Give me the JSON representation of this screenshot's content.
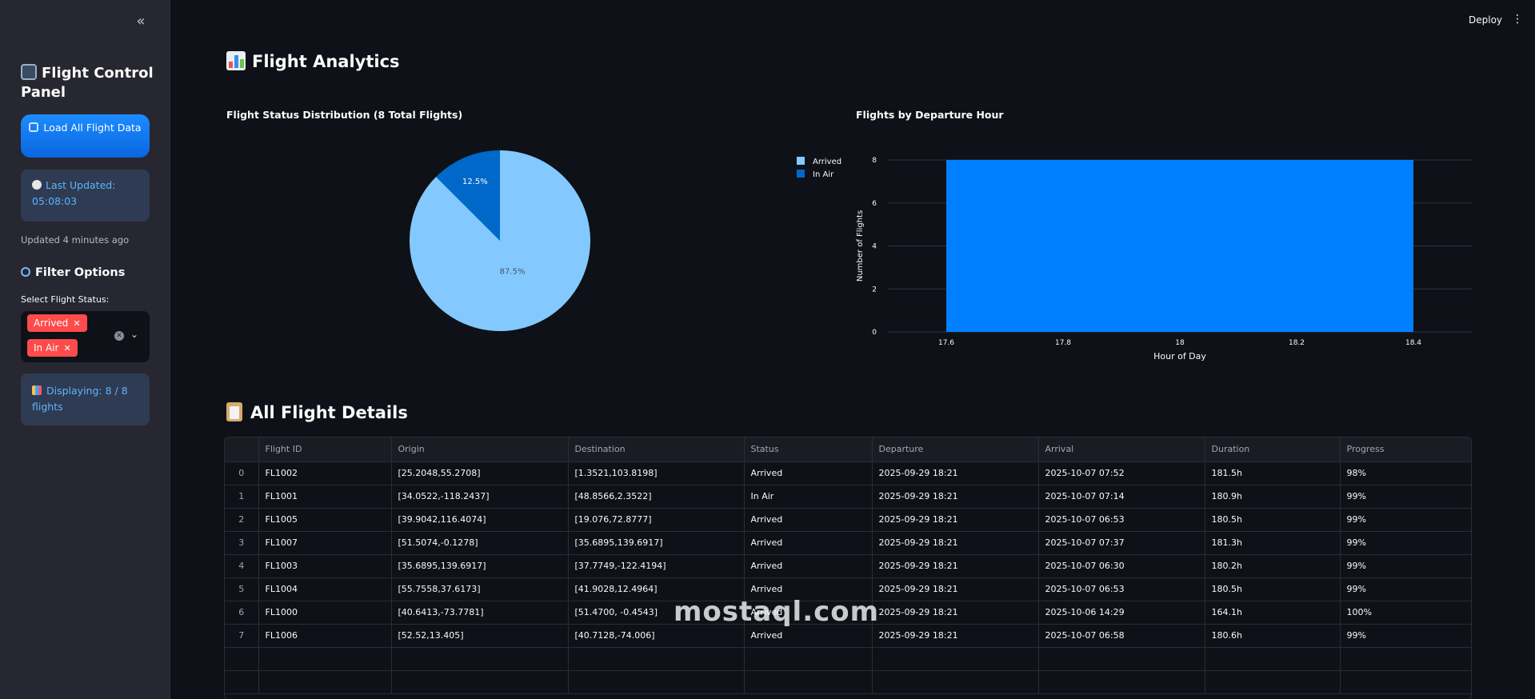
{
  "sidebar": {
    "collapse_icon": "«",
    "title": "Flight Control Panel",
    "load_button": "Load All Flight Data",
    "last_updated": "Last Updated: 05:08:03",
    "updated_ago": "Updated 4 minutes ago",
    "filter_title": "Filter Options",
    "filter_label": "Select Flight Status:",
    "selected_statuses": [
      "Arrived",
      "In Air"
    ],
    "displaying": "Displaying: 8 / 8 flights"
  },
  "header": {
    "deploy": "Deploy",
    "more_icon": "⋮"
  },
  "main": {
    "title": "Flight Analytics",
    "table_title": "All Flight Details"
  },
  "colors": {
    "arrived": "#83c9ff",
    "in_air": "#0068c9",
    "bar": "#0080ff",
    "accent": "#ff4b4b"
  },
  "chart_data": [
    {
      "type": "pie",
      "title": "Flight Status Distribution (8 Total Flights)",
      "slices": [
        {
          "label": "Arrived",
          "value": 87.5,
          "display": "87.5%"
        },
        {
          "label": "In Air",
          "value": 12.5,
          "display": "12.5%"
        }
      ],
      "legend": "right"
    },
    {
      "type": "bar",
      "title": "Flights by Departure Hour",
      "xlabel": "Hour of Day",
      "ylabel": "Number of Flights",
      "x": [
        18
      ],
      "bar_range": [
        17.6,
        18.4
      ],
      "values": [
        8
      ],
      "xlim": [
        17.5,
        18.5
      ],
      "ylim": [
        0,
        8
      ],
      "xticks": [
        "17.6",
        "17.8",
        "18",
        "18.2",
        "18.4"
      ],
      "yticks": [
        "0",
        "2",
        "4",
        "6",
        "8"
      ],
      "grid": true
    }
  ],
  "table": {
    "columns": [
      "",
      "Flight ID",
      "Origin",
      "Destination",
      "Status",
      "Departure",
      "Arrival",
      "Duration",
      "Progress"
    ],
    "rows": [
      [
        "0",
        "FL1002",
        "[25.2048,55.2708]",
        "[1.3521,103.8198]",
        "Arrived",
        "2025-09-29 18:21",
        "2025-10-07 07:52",
        "181.5h",
        "98%"
      ],
      [
        "1",
        "FL1001",
        "[34.0522,-118.2437]",
        "[48.8566,2.3522]",
        "In Air",
        "2025-09-29 18:21",
        "2025-10-07 07:14",
        "180.9h",
        "99%"
      ],
      [
        "2",
        "FL1005",
        "[39.9042,116.4074]",
        "[19.076,72.8777]",
        "Arrived",
        "2025-09-29 18:21",
        "2025-10-07 06:53",
        "180.5h",
        "99%"
      ],
      [
        "3",
        "FL1007",
        "[51.5074,-0.1278]",
        "[35.6895,139.6917]",
        "Arrived",
        "2025-09-29 18:21",
        "2025-10-07 07:37",
        "181.3h",
        "99%"
      ],
      [
        "4",
        "FL1003",
        "[35.6895,139.6917]",
        "[37.7749,-122.4194]",
        "Arrived",
        "2025-09-29 18:21",
        "2025-10-07 06:30",
        "180.2h",
        "99%"
      ],
      [
        "5",
        "FL1004",
        "[55.7558,37.6173]",
        "[41.9028,12.4964]",
        "Arrived",
        "2025-09-29 18:21",
        "2025-10-07 06:53",
        "180.5h",
        "99%"
      ],
      [
        "6",
        "FL1000",
        "[40.6413,-73.7781]",
        "[51.4700, -0.4543]",
        "Arrived",
        "2025-09-29 18:21",
        "2025-10-06 14:29",
        "164.1h",
        "100%"
      ],
      [
        "7",
        "FL1006",
        "[52.52,13.405]",
        "[40.7128,-74.006]",
        "Arrived",
        "2025-09-29 18:21",
        "2025-10-07 06:58",
        "180.6h",
        "99%"
      ]
    ]
  },
  "watermark": "mostaql.com"
}
